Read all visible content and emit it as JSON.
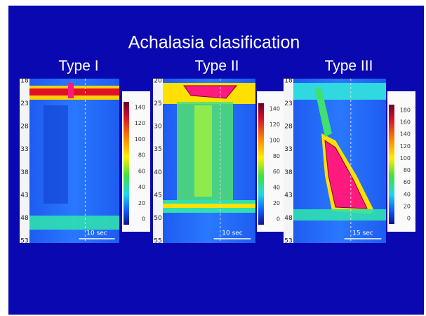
{
  "title": "Achalasia clasification",
  "panels": [
    {
      "label": "Type I",
      "sensor_ticks": [
        "18",
        "23",
        "28",
        "33",
        "38",
        "43",
        "48",
        "53"
      ],
      "pressure_ticks": [
        "140",
        "120",
        "100",
        "80",
        "60",
        "40",
        "20",
        "0"
      ],
      "time_scale": "10 sec"
    },
    {
      "label": "Type II",
      "sensor_ticks": [
        "20",
        "25",
        "30",
        "35",
        "40",
        "45",
        "50",
        "55"
      ],
      "pressure_ticks": [
        "140",
        "120",
        "100",
        "80",
        "60",
        "40",
        "20",
        "0"
      ],
      "time_scale": "10 sec"
    },
    {
      "label": "Type III",
      "sensor_ticks": [
        "18",
        "23",
        "28",
        "33",
        "38",
        "43",
        "48",
        "53"
      ],
      "pressure_ticks": [
        "180",
        "160",
        "140",
        "120",
        "100",
        "80",
        "60",
        "40",
        "20",
        "0"
      ],
      "time_scale": "15 sec"
    }
  ]
}
